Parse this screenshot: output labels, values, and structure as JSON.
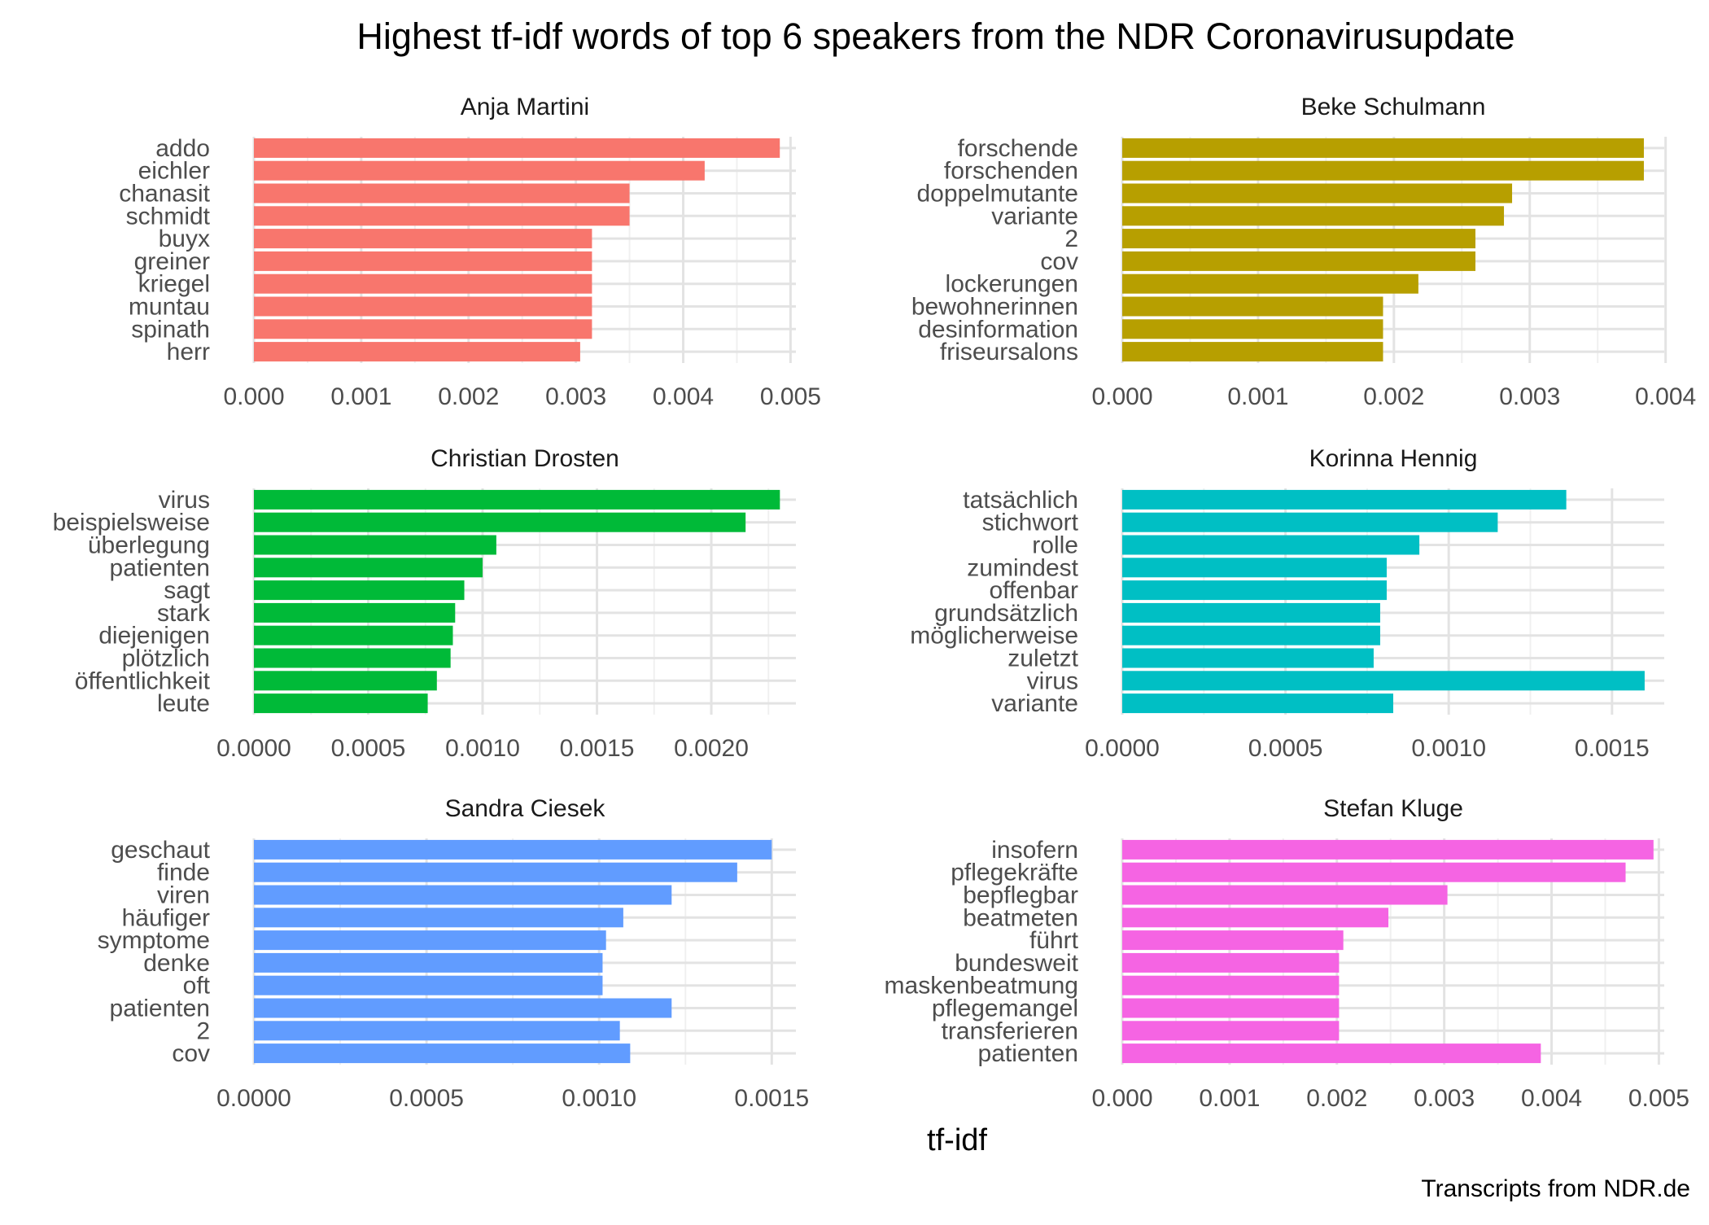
{
  "title": "Highest tf-idf words of top 6 speakers from the NDR Coronavirusupdate",
  "xlabel": "tf-idf",
  "caption": "Transcripts from NDR.de",
  "chart_data": [
    {
      "type": "bar",
      "orientation": "horizontal",
      "facet": "Anja Martini",
      "color": "#F8766D",
      "categories": [
        "addo",
        "eichler",
        "chanasit",
        "schmidt",
        "buyx",
        "greiner",
        "kriegel",
        "muntau",
        "spinath",
        "herr"
      ],
      "values": [
        0.0049,
        0.0042,
        0.0035,
        0.0035,
        0.00315,
        0.00315,
        0.00315,
        0.00315,
        0.00315,
        0.00304
      ],
      "xlim": [
        0,
        0.00505
      ],
      "ticks": [
        0,
        0.001,
        0.002,
        0.003,
        0.004,
        0.005
      ],
      "tick_labels": [
        "0.000",
        "0.001",
        "0.002",
        "0.003",
        "0.004",
        "0.005"
      ]
    },
    {
      "type": "bar",
      "orientation": "horizontal",
      "facet": "Beke Schulmann",
      "color": "#B79F00",
      "categories": [
        "forschende",
        "forschenden",
        "doppelmutante",
        "variante",
        "2",
        "cov",
        "lockerungen",
        "bewohnerinnen",
        "desinformation",
        "friseursalons"
      ],
      "values": [
        0.00384,
        0.00384,
        0.00287,
        0.00281,
        0.0026,
        0.0026,
        0.00218,
        0.00192,
        0.00192,
        0.00192
      ],
      "xlim": [
        0,
        0.00399
      ],
      "ticks": [
        0,
        0.001,
        0.002,
        0.003,
        0.004
      ],
      "tick_labels": [
        "0.000",
        "0.001",
        "0.002",
        "0.003",
        "0.004"
      ]
    },
    {
      "type": "bar",
      "orientation": "horizontal",
      "facet": "Christian Drosten",
      "color": "#00BA38",
      "categories": [
        "virus",
        "beispielsweise",
        "überlegung",
        "patienten",
        "sagt",
        "stark",
        "diejenigen",
        "plötzlich",
        "öffentlichkeit",
        "leute"
      ],
      "values": [
        0.0023,
        0.00215,
        0.00106,
        0.001,
        0.00092,
        0.00088,
        0.00087,
        0.00086,
        0.0008,
        0.00076
      ],
      "xlim": [
        0,
        0.00237
      ],
      "ticks": [
        0,
        0.0005,
        0.001,
        0.0015,
        0.002
      ],
      "tick_labels": [
        "0.0000",
        "0.0005",
        "0.0010",
        "0.0015",
        "0.0020"
      ]
    },
    {
      "type": "bar",
      "orientation": "horizontal",
      "facet": "Korinna Hennig",
      "color": "#00BFC4",
      "categories": [
        "tatsächlich",
        "stichwort",
        "rolle",
        "zumindest",
        "offenbar",
        "grundsätzlich",
        "möglicherweise",
        "zuletzt",
        "virus",
        "variante"
      ],
      "values": [
        0.00136,
        0.00115,
        0.00091,
        0.00081,
        0.00081,
        0.00079,
        0.00079,
        0.00077,
        0.0016,
        0.00083
      ],
      "xlim": [
        0,
        0.00166
      ],
      "ticks": [
        0,
        0.0005,
        0.001,
        0.0015
      ],
      "tick_labels": [
        "0.0000",
        "0.0005",
        "0.0010",
        "0.0015"
      ]
    },
    {
      "type": "bar",
      "orientation": "horizontal",
      "facet": "Sandra Ciesek",
      "color": "#619CFF",
      "categories": [
        "geschaut",
        "finde",
        "viren",
        "häufiger",
        "symptome",
        "denke",
        "oft",
        "patienten",
        "2",
        "cov"
      ],
      "values": [
        0.0015,
        0.0014,
        0.00121,
        0.00107,
        0.00102,
        0.00101,
        0.00101,
        0.00121,
        0.00106,
        0.00109
      ],
      "xlim": [
        0,
        0.00157
      ],
      "ticks": [
        0,
        0.0005,
        0.001,
        0.0015
      ],
      "tick_labels": [
        "0.0000",
        "0.0005",
        "0.0010",
        "0.0015"
      ]
    },
    {
      "type": "bar",
      "orientation": "horizontal",
      "facet": "Stefan Kluge",
      "color": "#F564E3",
      "categories": [
        "insofern",
        "pflegekräfte",
        "bepflegbar",
        "beatmeten",
        "führt",
        "bundesweit",
        "maskenbeatmung",
        "pflegemangel",
        "transferieren",
        "patienten"
      ],
      "values": [
        0.00495,
        0.00469,
        0.00303,
        0.00248,
        0.00206,
        0.00202,
        0.00202,
        0.00202,
        0.00202,
        0.0039
      ],
      "xlim": [
        0,
        0.00505
      ],
      "ticks": [
        0,
        0.001,
        0.002,
        0.003,
        0.004,
        0.005
      ],
      "tick_labels": [
        "0.000",
        "0.001",
        "0.002",
        "0.003",
        "0.004",
        "0.005"
      ]
    }
  ]
}
